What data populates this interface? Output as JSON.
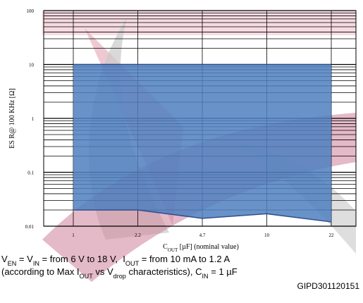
{
  "chart_data": {
    "type": "range-area",
    "categories": [
      "1",
      "2.2",
      "4.7",
      "10",
      "22"
    ],
    "upper": [
      10,
      10,
      10,
      10,
      10
    ],
    "lower": [
      0.02,
      0.02,
      0.014,
      0.017,
      0.012
    ],
    "color": "#4f7fc0",
    "ylim": [
      0.01,
      100
    ],
    "yticks": [
      0.01,
      0.1,
      1,
      10,
      100
    ],
    "log_y": true,
    "grid": true,
    "ylabel": "ES R@ 100 KHz [Ω]",
    "xlabel": [
      {
        "text": "C"
      },
      {
        "sub": "OUT"
      },
      {
        "text": " [µF] (nominal value)"
      }
    ]
  },
  "notes": [
    [
      {
        "text": "V"
      },
      {
        "sub": "EN"
      },
      {
        "text": " = V"
      },
      {
        "sub": "IN"
      },
      {
        "text": " = from 6 V to 18 V,  I"
      },
      {
        "sub": "OUT"
      },
      {
        "text": " = from 10 mA to 1.2 A"
      }
    ],
    [
      {
        "text": "(according to Max I"
      },
      {
        "sub": "OUT"
      },
      {
        "text": " vs V"
      },
      {
        "sub": "drop"
      },
      {
        "text": " characteristics), C"
      },
      {
        "sub": "IN"
      },
      {
        "text": " = 1 µF"
      }
    ]
  ],
  "code": "GIPD301120151"
}
